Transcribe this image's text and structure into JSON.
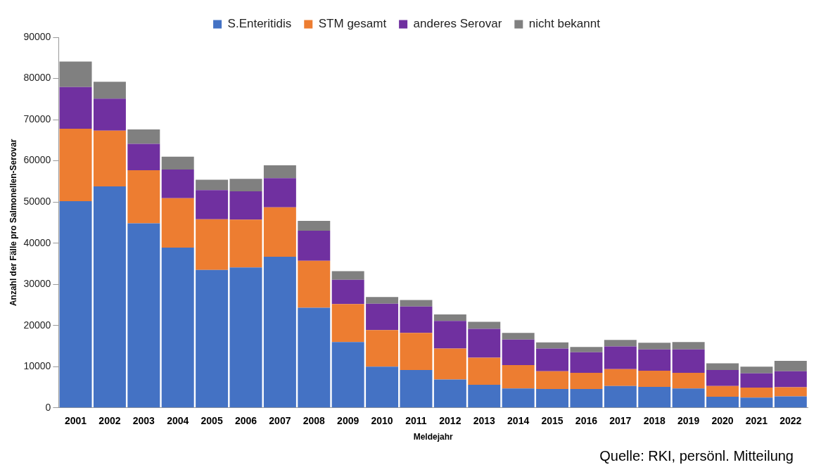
{
  "chart_data": {
    "type": "bar",
    "stacked": true,
    "xlabel": "Meldejahr",
    "ylabel": "Anzahl der Fälle pro Salmonellen-Serovar",
    "categories": [
      "2001",
      "2002",
      "2003",
      "2004",
      "2005",
      "2006",
      "2007",
      "2008",
      "2009",
      "2010",
      "2011",
      "2012",
      "2013",
      "2014",
      "2015",
      "2016",
      "2017",
      "2018",
      "2019",
      "2020",
      "2021",
      "2022"
    ],
    "series": [
      {
        "name": "S.Enteritidis",
        "color": "#4472c4",
        "values": [
          50200,
          53800,
          44800,
          38900,
          33500,
          34100,
          36700,
          24300,
          16000,
          10000,
          9200,
          6900,
          5600,
          4700,
          4600,
          4600,
          5300,
          5100,
          4700,
          2700,
          2500,
          2800
        ]
      },
      {
        "name": "STM gesamt",
        "color": "#ed7d31",
        "values": [
          17600,
          13500,
          12900,
          12000,
          12300,
          11600,
          12000,
          11400,
          9200,
          8900,
          9000,
          7500,
          6600,
          5700,
          4300,
          3900,
          4100,
          3900,
          3800,
          2600,
          2400,
          2200
        ]
      },
      {
        "name": "anderes Serovar",
        "color": "#7030a0",
        "values": [
          10100,
          7800,
          6400,
          7000,
          7100,
          6900,
          7100,
          7300,
          5900,
          6400,
          6400,
          6700,
          7000,
          6200,
          5500,
          5000,
          5500,
          5200,
          5700,
          3900,
          3500,
          3900
        ]
      },
      {
        "name": "nicht bekannt",
        "color": "#808080",
        "values": [
          6200,
          4100,
          3500,
          3100,
          2500,
          3000,
          3100,
          2400,
          2100,
          1600,
          1600,
          1600,
          1700,
          1600,
          1500,
          1300,
          1600,
          1600,
          1800,
          1600,
          1600,
          2500
        ]
      }
    ],
    "ylim": [
      0,
      90000
    ],
    "yticks": [
      0,
      10000,
      20000,
      30000,
      40000,
      50000,
      60000,
      70000,
      80000,
      90000
    ],
    "grid": false,
    "legend": "top",
    "annotations": [
      "Quelle: RKI, persönl. Mitteilung"
    ]
  }
}
